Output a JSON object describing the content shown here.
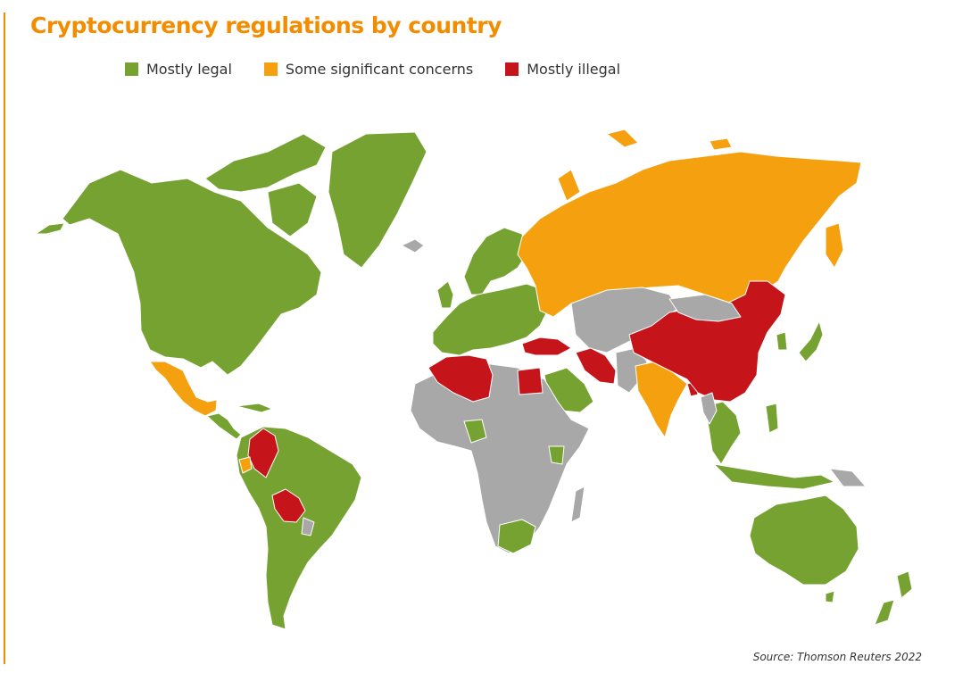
{
  "title": "Cryptocurrency regulations by country",
  "legend": [
    {
      "label": "Mostly legal",
      "color": "#76a232"
    },
    {
      "label": "Some significant concerns",
      "color": "#f5a00f"
    },
    {
      "label": "Mostly illegal",
      "color": "#c5151a"
    }
  ],
  "no_data_color": "#a8a8a8",
  "accent_color": "#f28c00",
  "source": "Source: Thomson Reuters 2022"
}
